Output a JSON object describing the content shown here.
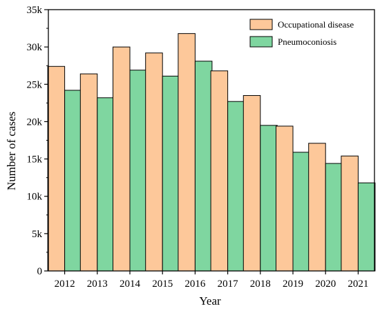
{
  "chart_data": {
    "type": "bar",
    "categories": [
      "2012",
      "2013",
      "2014",
      "2015",
      "2016",
      "2017",
      "2018",
      "2019",
      "2020",
      "2021"
    ],
    "series": [
      {
        "name": "Occupational disease",
        "color": "#FDC89A",
        "values": [
          27400,
          26400,
          30000,
          29200,
          31800,
          26800,
          23500,
          19400,
          17100,
          15400
        ]
      },
      {
        "name": "Pneumoconiosis",
        "color": "#7FD6A0",
        "values": [
          24200,
          23200,
          26900,
          26100,
          28100,
          22700,
          19500,
          15900,
          14400,
          11800
        ]
      }
    ],
    "xlabel": "Year",
    "ylabel": "Number of cases",
    "ylim": [
      0,
      35000
    ],
    "yticks": [
      0,
      5000,
      10000,
      15000,
      20000,
      25000,
      30000,
      35000
    ],
    "ytick_labels": [
      "0",
      "5k",
      "10k",
      "15k",
      "20k",
      "25k",
      "30k",
      "35k"
    ],
    "grid": false,
    "legend_position": "top-right"
  }
}
